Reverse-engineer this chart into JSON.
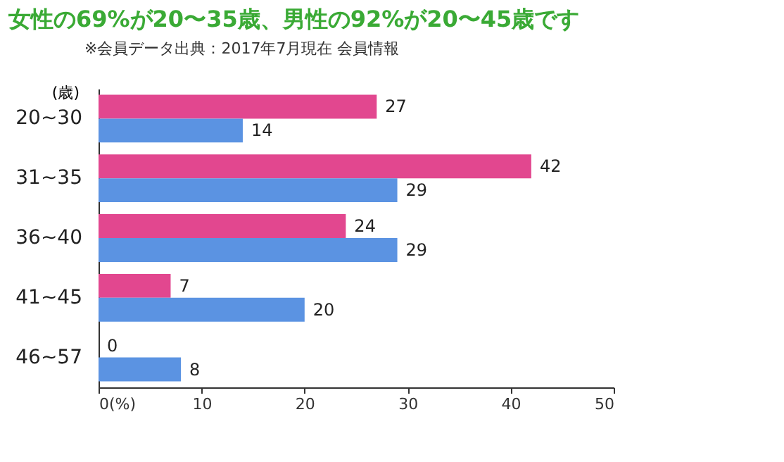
{
  "chart_data": {
    "type": "bar",
    "orientation": "horizontal",
    "title": "女性の69%が20〜35歳、男性の92%が20〜45歳です",
    "subtitle": "※会員データ出典：2017年7月現在 会員情報",
    "ylabel": "(歳)",
    "categories": [
      "20~30",
      "31~35",
      "36~40",
      "41~45",
      "46~57"
    ],
    "series": [
      {
        "color": "#e2478f",
        "values": [
          27,
          42,
          24,
          7,
          0
        ]
      },
      {
        "color": "#5b93e2",
        "values": [
          14,
          29,
          29,
          20,
          8
        ]
      }
    ],
    "xlim": [
      0,
      50
    ],
    "xticks": [
      {
        "value": 0,
        "label": "0(%)"
      },
      10,
      20,
      30,
      40,
      50
    ],
    "data_labels": true,
    "grid": false,
    "legend": false
  }
}
